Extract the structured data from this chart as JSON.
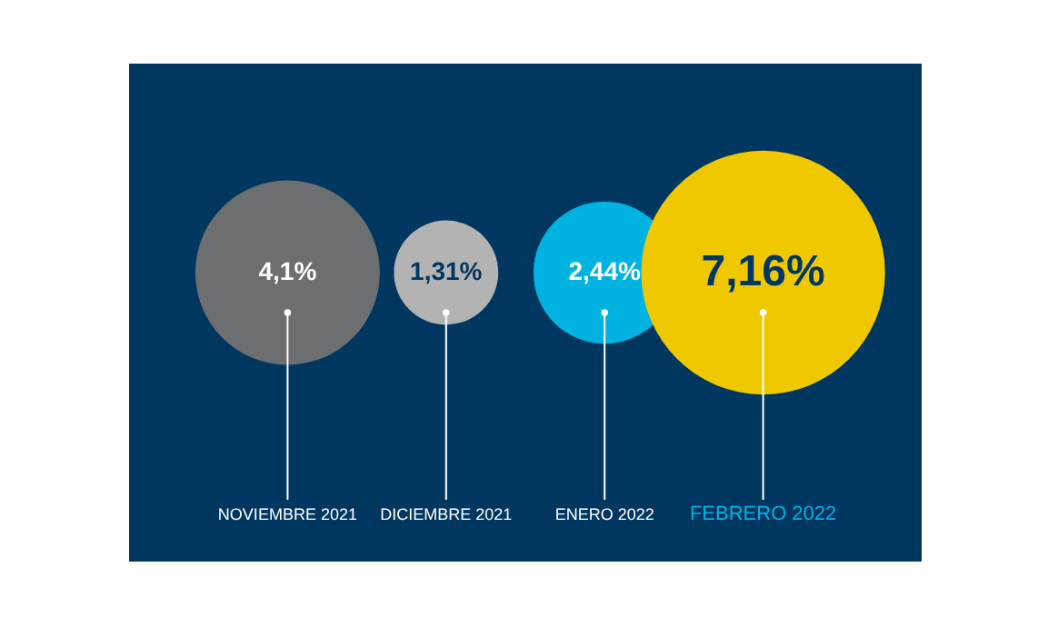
{
  "chart_data": {
    "type": "other",
    "categories": [
      "NOVIEMBRE 2021",
      "DICIEMBRE 2021",
      "ENERO 2022",
      "FEBRERO 2022"
    ],
    "values": [
      4.1,
      1.31,
      2.44,
      7.16
    ],
    "value_labels": [
      "4,1%",
      "1,31%",
      "2,44%",
      "7,16%"
    ],
    "colors": [
      "#6d6e70",
      "#b3b3b3",
      "#00b2e0",
      "#f0c800"
    ]
  }
}
